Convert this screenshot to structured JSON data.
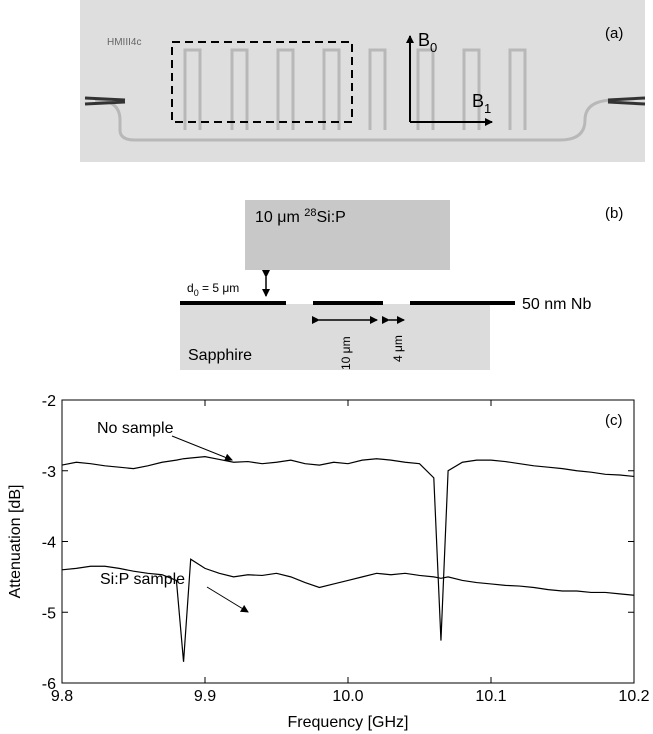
{
  "panel_a": {
    "chip_label": "HMIII4c",
    "panel_label": "(a)",
    "b0": {
      "symbol": "B",
      "subscript": "0"
    },
    "b1": {
      "symbol": "B",
      "subscript": "1"
    }
  },
  "panel_b": {
    "panel_label": "(b)",
    "sample": {
      "prefix": "10 μm ",
      "superscript": "28",
      "suffix": "Si:P"
    },
    "gap": {
      "symbol": "d",
      "subscript": "0",
      "rest": " = 5 μm"
    },
    "film": "50 nm Nb",
    "width": "10 μm",
    "spacing": "4 μm",
    "substrate": "Sapphire"
  },
  "chart_data": {
    "type": "line",
    "label": "(c)",
    "x_label": "Frequency [GHz]",
    "y_label": "Attenuation [dB]",
    "x": [
      9.8,
      9.81,
      9.82,
      9.83,
      9.84,
      9.85,
      9.86,
      9.87,
      9.88,
      9.885,
      9.89,
      9.9,
      9.91,
      9.92,
      9.93,
      9.94,
      9.95,
      9.96,
      9.97,
      9.98,
      9.99,
      10,
      10.01,
      10.02,
      10.03,
      10.04,
      10.05,
      10.06,
      10.065,
      10.07,
      10.08,
      10.09,
      10.1,
      10.11,
      10.12,
      10.13,
      10.14,
      10.15,
      10.16,
      10.17,
      10.18,
      10.19,
      10.2
    ],
    "series": [
      {
        "name": "No sample",
        "color": "#000000",
        "values": [
          -2.92,
          -2.88,
          -2.9,
          -2.93,
          -2.95,
          -2.97,
          -2.93,
          -2.88,
          -2.85,
          -2.83,
          -2.82,
          -2.8,
          -2.84,
          -2.88,
          -2.87,
          -2.9,
          -2.88,
          -2.85,
          -2.9,
          -2.92,
          -2.88,
          -2.9,
          -2.85,
          -2.83,
          -2.85,
          -2.88,
          -2.9,
          -3.1,
          -5.4,
          -3.0,
          -2.88,
          -2.85,
          -2.85,
          -2.87,
          -2.9,
          -2.93,
          -2.95,
          -2.97,
          -3.0,
          -3.02,
          -3.05,
          -3.06,
          -3.08
        ]
      },
      {
        "name": "Si:P sample",
        "color": "#000000",
        "values": [
          -4.4,
          -4.38,
          -4.35,
          -4.35,
          -4.38,
          -4.42,
          -4.45,
          -4.47,
          -4.55,
          -5.7,
          -4.25,
          -4.38,
          -4.45,
          -4.5,
          -4.47,
          -4.48,
          -4.45,
          -4.5,
          -4.58,
          -4.65,
          -4.6,
          -4.55,
          -4.5,
          -4.45,
          -4.47,
          -4.45,
          -4.48,
          -4.5,
          -4.52,
          -4.5,
          -4.55,
          -4.58,
          -4.6,
          -4.62,
          -4.63,
          -4.65,
          -4.68,
          -4.7,
          -4.7,
          -4.72,
          -4.72,
          -4.74,
          -4.76
        ]
      }
    ],
    "xlim": [
      9.8,
      10.2
    ],
    "xticks": [
      9.8,
      9.9,
      {
        "value": 10,
        "label": "10.0"
      },
      10.1,
      10.2
    ],
    "ylim": [
      -6,
      -2
    ],
    "yticks": [
      -6,
      -5,
      -4,
      -3,
      -2
    ]
  }
}
